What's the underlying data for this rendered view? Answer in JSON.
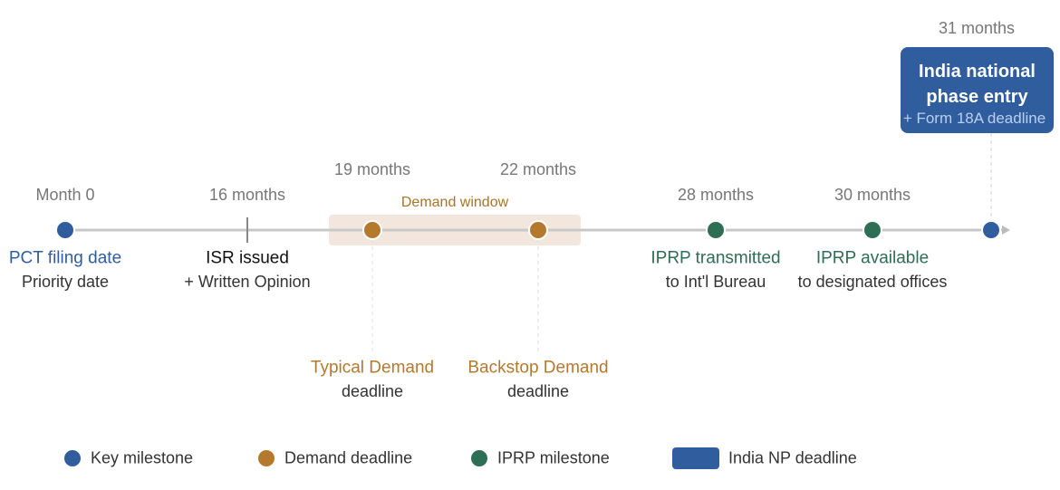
{
  "milestones": [
    {
      "month": "Month 0",
      "title": "PCT filing date",
      "subtitle": "Priority date",
      "color": "#2f5d9e",
      "marker": "dot"
    },
    {
      "month": "16 months",
      "title": "ISR issued",
      "subtitle": "+ Written Opinion",
      "color": "#111111",
      "marker": "tick"
    },
    {
      "month": "19 months",
      "title": "Typical Demand",
      "subtitle": "deadline",
      "color": "#b5792e",
      "marker": "dot"
    },
    {
      "month": "22 months",
      "title": "Backstop Demand",
      "subtitle": "deadline",
      "color": "#b5792e",
      "marker": "dot"
    },
    {
      "month": "28 months",
      "title": "IPRP transmitted",
      "subtitle": "to Int'l Bureau",
      "color": "#2e6e55",
      "marker": "dot"
    },
    {
      "month": "30 months",
      "title": "IPRP available",
      "subtitle": "to designated offices",
      "color": "#2e6e55",
      "marker": "dot"
    }
  ],
  "demand_window": "Demand window",
  "india": {
    "month": "31 months",
    "title": "India national phase entry",
    "subtitle": "+ Form 18A deadline",
    "color": "#2f5d9e"
  },
  "legend": [
    {
      "label": "Key milestone",
      "color": "#2f5d9e",
      "marker": "dot"
    },
    {
      "label": "Demand deadline",
      "color": "#b5792e",
      "marker": "dot"
    },
    {
      "label": "IPRP milestone",
      "color": "#2e6e55",
      "marker": "dot"
    },
    {
      "label": "India NP deadline",
      "color": "#2f5d9e",
      "marker": "box"
    }
  ]
}
